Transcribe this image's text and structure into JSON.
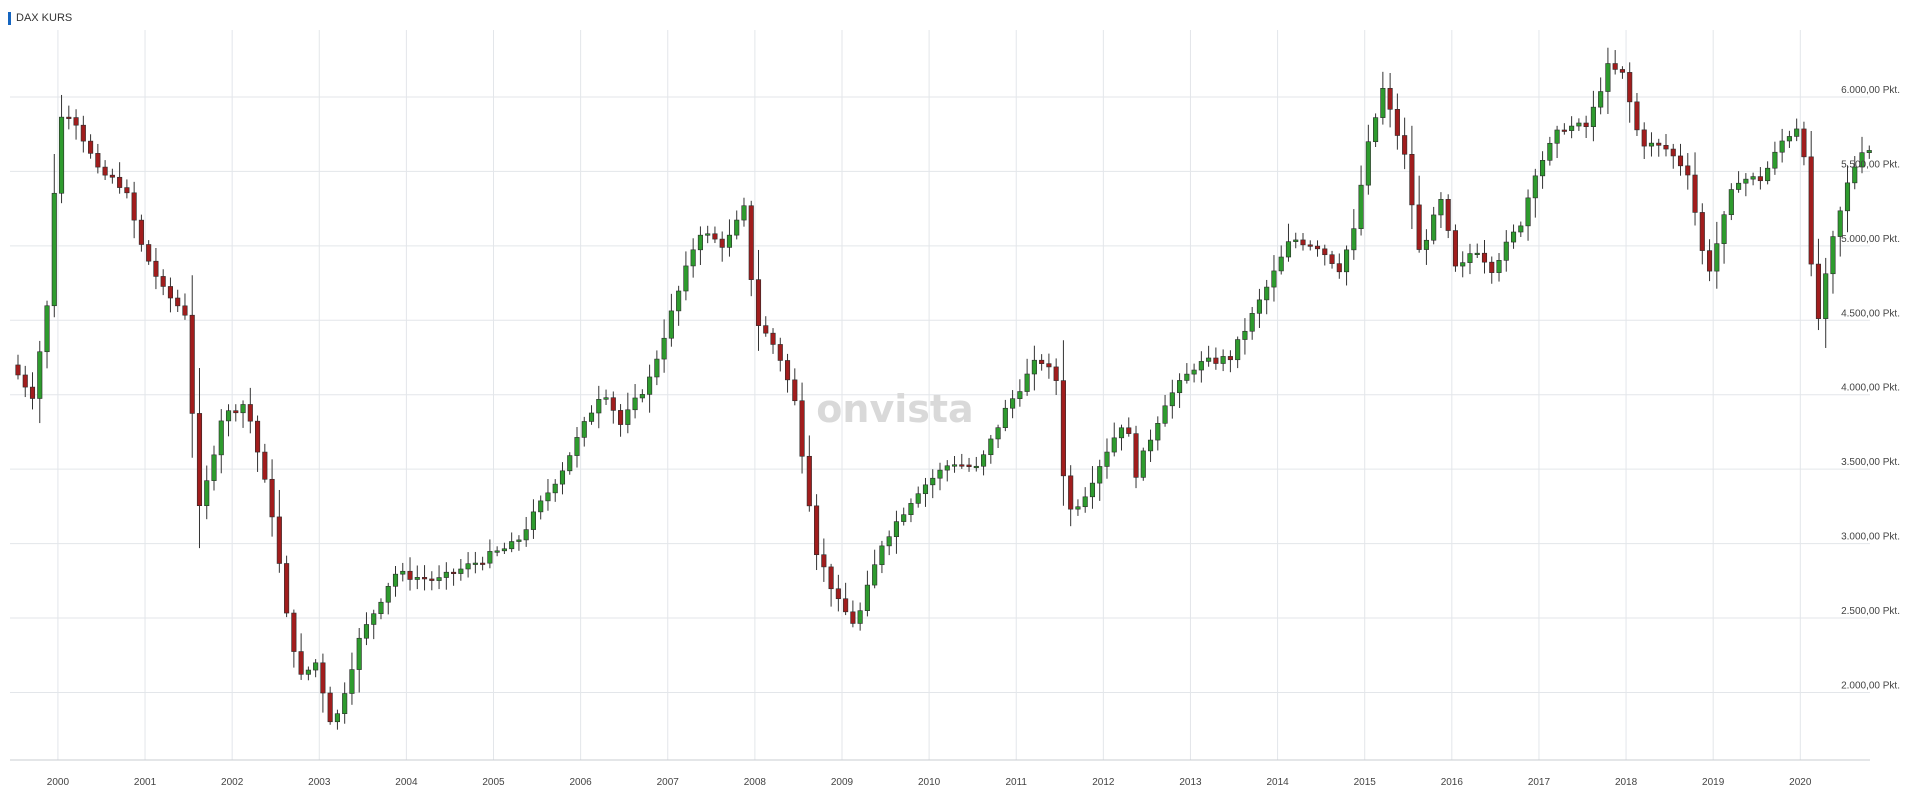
{
  "header": {
    "title": "DAX KURS"
  },
  "watermark": "onvista",
  "colors": {
    "up": "#2e9b2e",
    "down": "#a11d1d",
    "grid": "#e3e6ea",
    "marker": "#1565c0"
  },
  "chart_data": {
    "type": "candlestick",
    "title": "DAX KURS",
    "interval": "monthly",
    "x_range": [
      1999.45,
      2020.8
    ],
    "ylim": [
      1580,
      6450
    ],
    "y_ticks": [
      {
        "value": 2000,
        "label": "2.000,00 Pkt."
      },
      {
        "value": 2500,
        "label": "2.500,00 Pkt."
      },
      {
        "value": 3000,
        "label": "3.000,00 Pkt."
      },
      {
        "value": 3500,
        "label": "3.500,00 Pkt."
      },
      {
        "value": 4000,
        "label": "4.000,00 Pkt."
      },
      {
        "value": 4500,
        "label": "4.500,00 Pkt."
      },
      {
        "value": 5000,
        "label": "5.000,00 Pkt."
      },
      {
        "value": 5500,
        "label": "5.500,00 Pkt."
      },
      {
        "value": 6000,
        "label": "6.000,00 Pkt."
      }
    ],
    "x_ticks": [
      {
        "value": 2000,
        "label": "2000"
      },
      {
        "value": 2001,
        "label": "2001"
      },
      {
        "value": 2002,
        "label": "2002"
      },
      {
        "value": 2003,
        "label": "2003"
      },
      {
        "value": 2004,
        "label": "2004"
      },
      {
        "value": 2005,
        "label": "2005"
      },
      {
        "value": 2006,
        "label": "2006"
      },
      {
        "value": 2007,
        "label": "2007"
      },
      {
        "value": 2008,
        "label": "2008"
      },
      {
        "value": 2009,
        "label": "2009"
      },
      {
        "value": 2010,
        "label": "2010"
      },
      {
        "value": 2011,
        "label": "2011"
      },
      {
        "value": 2012,
        "label": "2012"
      },
      {
        "value": 2013,
        "label": "2013"
      },
      {
        "value": 2014,
        "label": "2014"
      },
      {
        "value": 2015,
        "label": "2015"
      },
      {
        "value": 2016,
        "label": "2016"
      },
      {
        "value": 2017,
        "label": "2017"
      },
      {
        "value": 2018,
        "label": "2018"
      },
      {
        "value": 2019,
        "label": "2019"
      },
      {
        "value": 2020,
        "label": "2020"
      }
    ],
    "keypoints": [
      {
        "t": 1999.5,
        "v": 4200
      },
      {
        "t": 1999.75,
        "v": 4000
      },
      {
        "t": 1999.92,
        "v": 4600
      },
      {
        "t": 2000.05,
        "v": 5850
      },
      {
        "t": 2000.2,
        "v": 5900
      },
      {
        "t": 2000.5,
        "v": 5500
      },
      {
        "t": 2000.8,
        "v": 5400
      },
      {
        "t": 2001.0,
        "v": 5000
      },
      {
        "t": 2001.25,
        "v": 4700
      },
      {
        "t": 2001.5,
        "v": 4550
      },
      {
        "t": 2001.67,
        "v": 3200
      },
      {
        "t": 2001.92,
        "v": 3850
      },
      {
        "t": 2002.2,
        "v": 3950
      },
      {
        "t": 2002.5,
        "v": 3200
      },
      {
        "t": 2002.67,
        "v": 2500
      },
      {
        "t": 2002.83,
        "v": 2100
      },
      {
        "t": 2003.0,
        "v": 2200
      },
      {
        "t": 2003.2,
        "v": 1750
      },
      {
        "t": 2003.5,
        "v": 2350
      },
      {
        "t": 2003.9,
        "v": 2800
      },
      {
        "t": 2004.4,
        "v": 2750
      },
      {
        "t": 2004.75,
        "v": 2850
      },
      {
        "t": 2005.3,
        "v": 3000
      },
      {
        "t": 2005.83,
        "v": 3500
      },
      {
        "t": 2006.3,
        "v": 4050
      },
      {
        "t": 2006.5,
        "v": 3800
      },
      {
        "t": 2006.83,
        "v": 4100
      },
      {
        "t": 2007.0,
        "v": 4400
      },
      {
        "t": 2007.4,
        "v": 5100
      },
      {
        "t": 2007.7,
        "v": 5000
      },
      {
        "t": 2007.92,
        "v": 5250
      },
      {
        "t": 2008.05,
        "v": 4500
      },
      {
        "t": 2008.3,
        "v": 4300
      },
      {
        "t": 2008.5,
        "v": 3950
      },
      {
        "t": 2008.75,
        "v": 2950
      },
      {
        "t": 2009.0,
        "v": 2600
      },
      {
        "t": 2009.2,
        "v": 2450
      },
      {
        "t": 2009.5,
        "v": 3000
      },
      {
        "t": 2009.9,
        "v": 3350
      },
      {
        "t": 2010.3,
        "v": 3550
      },
      {
        "t": 2010.6,
        "v": 3500
      },
      {
        "t": 2010.92,
        "v": 3900
      },
      {
        "t": 2011.3,
        "v": 4250
      },
      {
        "t": 2011.5,
        "v": 4100
      },
      {
        "t": 2011.62,
        "v": 3200
      },
      {
        "t": 2011.8,
        "v": 3300
      },
      {
        "t": 2012.1,
        "v": 3650
      },
      {
        "t": 2012.3,
        "v": 3850
      },
      {
        "t": 2012.4,
        "v": 3450
      },
      {
        "t": 2012.75,
        "v": 3950
      },
      {
        "t": 2013.1,
        "v": 4200
      },
      {
        "t": 2013.5,
        "v": 4250
      },
      {
        "t": 2013.9,
        "v": 4700
      },
      {
        "t": 2014.2,
        "v": 5050
      },
      {
        "t": 2014.5,
        "v": 5000
      },
      {
        "t": 2014.75,
        "v": 4850
      },
      {
        "t": 2014.92,
        "v": 5100
      },
      {
        "t": 2015.05,
        "v": 5600
      },
      {
        "t": 2015.25,
        "v": 6050
      },
      {
        "t": 2015.5,
        "v": 5600
      },
      {
        "t": 2015.67,
        "v": 4950
      },
      {
        "t": 2015.92,
        "v": 5300
      },
      {
        "t": 2016.1,
        "v": 4800
      },
      {
        "t": 2016.3,
        "v": 5000
      },
      {
        "t": 2016.5,
        "v": 4850
      },
      {
        "t": 2016.83,
        "v": 5150
      },
      {
        "t": 2017.0,
        "v": 5500
      },
      {
        "t": 2017.3,
        "v": 5800
      },
      {
        "t": 2017.6,
        "v": 5800
      },
      {
        "t": 2017.83,
        "v": 6200
      },
      {
        "t": 2018.0,
        "v": 6150
      },
      {
        "t": 2018.2,
        "v": 5700
      },
      {
        "t": 2018.5,
        "v": 5650
      },
      {
        "t": 2018.75,
        "v": 5500
      },
      {
        "t": 2018.92,
        "v": 4950
      },
      {
        "t": 2019.0,
        "v": 4850
      },
      {
        "t": 2019.3,
        "v": 5450
      },
      {
        "t": 2019.6,
        "v": 5450
      },
      {
        "t": 2019.83,
        "v": 5700
      },
      {
        "t": 2020.0,
        "v": 5800
      },
      {
        "t": 2020.12,
        "v": 5550
      },
      {
        "t": 2020.2,
        "v": 4350
      },
      {
        "t": 2020.4,
        "v": 5000
      },
      {
        "t": 2020.6,
        "v": 5450
      },
      {
        "t": 2020.75,
        "v": 5650
      }
    ]
  }
}
